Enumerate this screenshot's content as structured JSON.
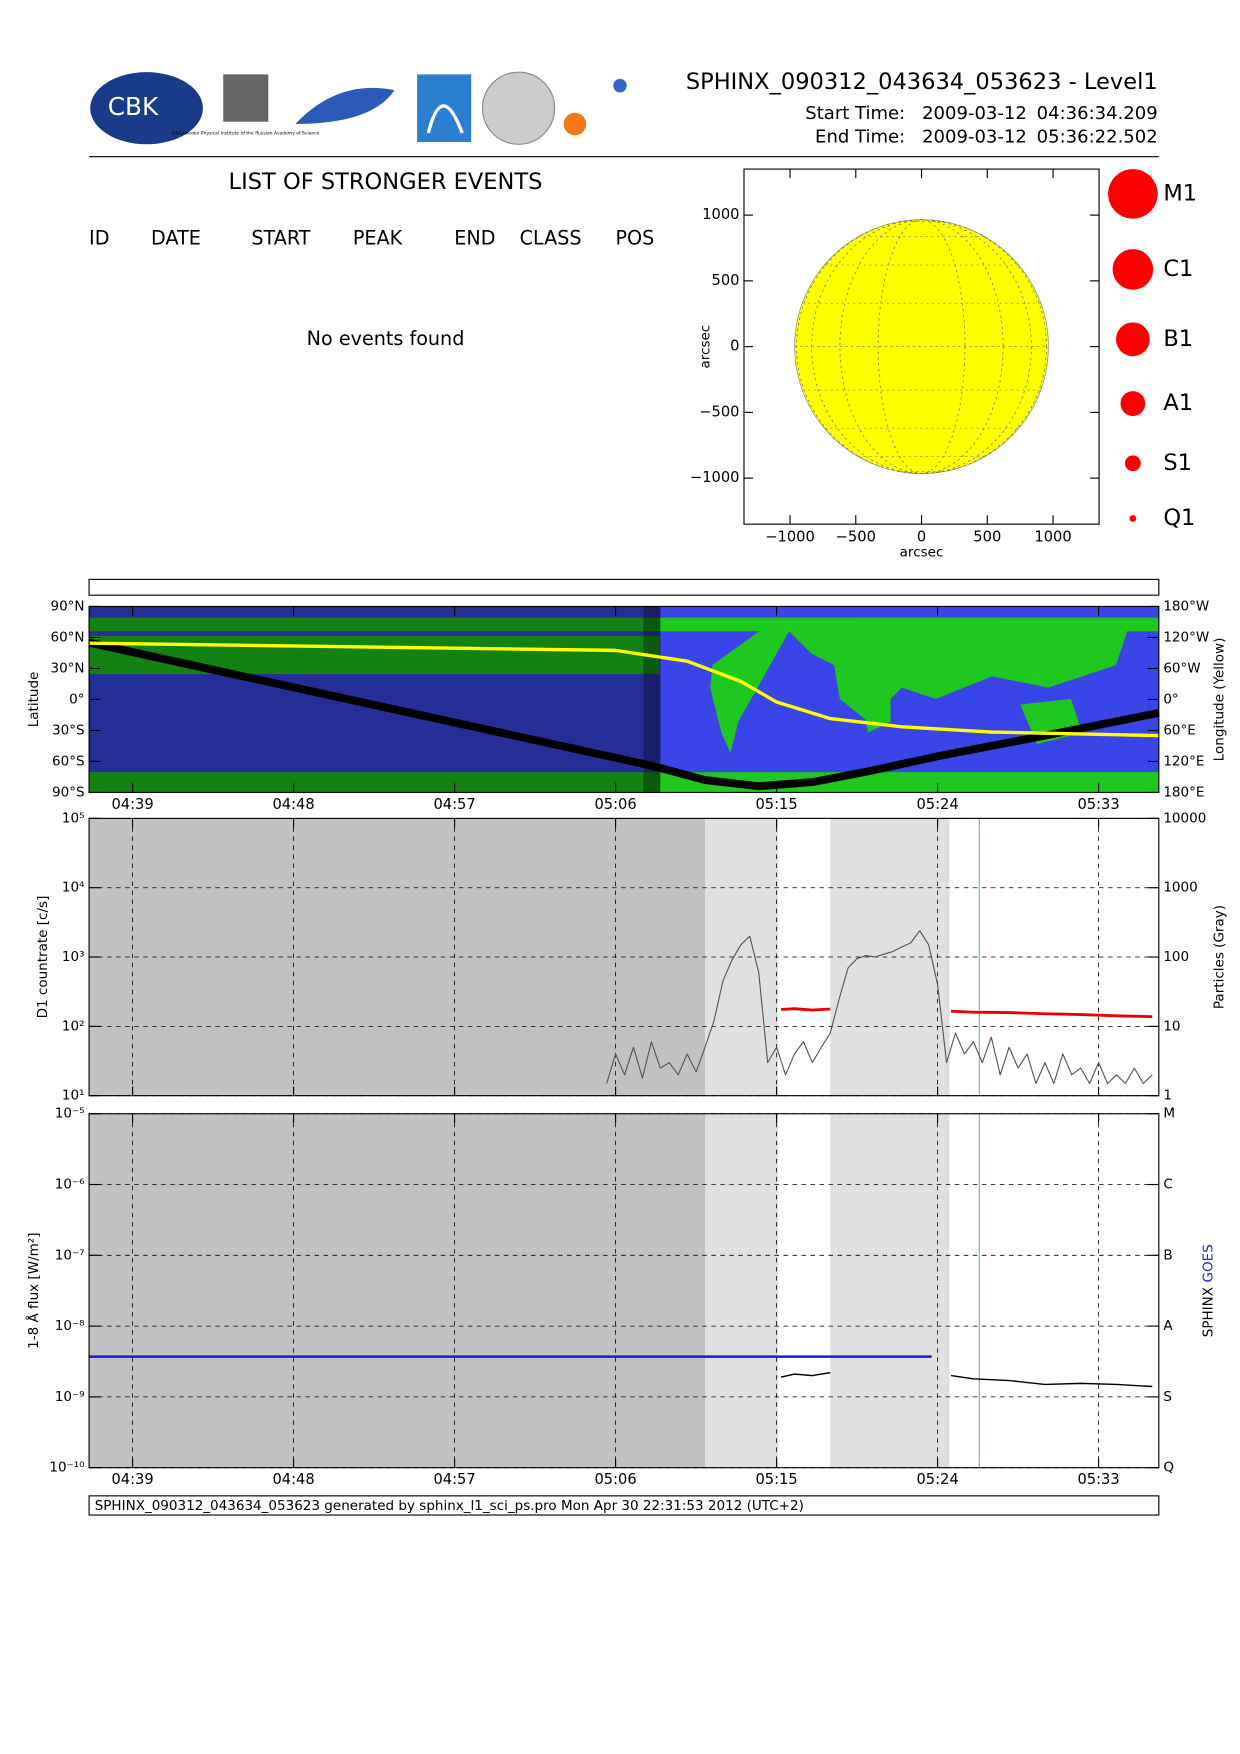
{
  "header": {
    "title": "SPHINX_090312_043634_053623 - Level1",
    "start_label": "Start Time:",
    "start_date": "2009-03-12",
    "start_time": "04:36:34.209",
    "end_label": "End Time:",
    "end_date": "2009-03-12",
    "end_time": "05:36:22.502",
    "logo_text": "CBK",
    "lebedev_caption": "P.N.Lebedev Physical Institute of the Russian Academy of Science"
  },
  "events": {
    "title": "LIST OF STRONGER EVENTS",
    "columns": [
      "ID",
      "DATE",
      "START",
      "PEAK",
      "END",
      "CLASS",
      "POS"
    ],
    "message": "No events found"
  },
  "chart_data": [
    {
      "type": "disk",
      "xlabel": "arcsec",
      "ylabel": "arcsec",
      "xlim": [
        -1350,
        1350
      ],
      "ylim": [
        -1350,
        1350
      ],
      "xticks": [
        {
          "value": -1000,
          "label": "−1000"
        },
        {
          "value": -500,
          "label": "−500"
        },
        0,
        500,
        1000
      ],
      "yticks": [
        {
          "value": -1000,
          "label": "−1000"
        },
        {
          "value": -500,
          "label": "−500"
        },
        0,
        500,
        1000
      ],
      "sun_radius": 965,
      "color": "#ffff00",
      "legend": [
        "M1",
        "C1",
        "B1",
        "A1",
        "S1",
        "Q1"
      ],
      "legend_color": "#ff0000"
    },
    {
      "type": "map",
      "ylabel": "Latitude",
      "y2label": "Longitude (Yellow)",
      "xlim": [
        "04:36:34",
        "05:36:22"
      ],
      "xticks": [
        "04:39",
        "04:48",
        "04:57",
        "05:06",
        "05:15",
        "05:24",
        "05:33"
      ],
      "ylim": [
        -90,
        90
      ],
      "yticks": [
        {
          "value": 90,
          "label": "90°N"
        },
        {
          "value": 60,
          "label": "60°N"
        },
        {
          "value": 30,
          "label": "30°N"
        },
        {
          "value": 0,
          "label": "0°"
        },
        {
          "value": -30,
          "label": "30°S"
        },
        {
          "value": -60,
          "label": "60°S"
        },
        {
          "value": -90,
          "label": "90°S"
        }
      ],
      "y2lim": [
        180,
        -180
      ],
      "y2ticks": [
        {
          "value": -180,
          "label": "180°W"
        },
        {
          "value": -120,
          "label": "120°W"
        },
        {
          "value": -60,
          "label": "60°W"
        },
        {
          "value": 0,
          "label": "0°"
        },
        {
          "value": 60,
          "label": "60°E"
        },
        {
          "value": 120,
          "label": "120°E"
        },
        {
          "value": 180,
          "label": "180°E"
        }
      ],
      "shade": [
        "04:36:34",
        "05:08:30"
      ],
      "series": [
        {
          "color": "#000000",
          "axis": "y",
          "x": [
            "04:36:34",
            "05:08:00",
            "05:11:00",
            "05:14:00",
            "05:17:00",
            "05:20:00",
            "05:24:00",
            "05:30:00",
            "05:36:22"
          ],
          "values": [
            55,
            -64,
            -78,
            -84,
            -80,
            -70,
            -55,
            -35,
            -13
          ]
        },
        {
          "color": "#ffff00",
          "axis": "y2",
          "x": [
            "04:36:34",
            "05:06:00",
            "05:10:00",
            "05:13:00",
            "05:15:00",
            "05:18:00",
            "05:22:00",
            "05:27:00",
            "05:36:22"
          ],
          "values": [
            -109,
            -95,
            -74,
            -35,
            5,
            37,
            53,
            63,
            70
          ]
        }
      ]
    },
    {
      "type": "log_line",
      "ylabel": "D1 countrate [c/s]",
      "y2label": "Particles (Gray)",
      "xlim": [
        "04:36:34",
        "05:36:22"
      ],
      "xticks": [
        "04:39",
        "04:48",
        "04:57",
        "05:06",
        "05:15",
        "05:24",
        "05:33"
      ],
      "ylim": [
        10,
        100000
      ],
      "yticks": [
        {
          "value": 10,
          "label": "10¹"
        },
        {
          "value": 100,
          "label": "10²"
        },
        {
          "value": 1000,
          "label": "10³"
        },
        {
          "value": 10000,
          "label": "10⁴"
        },
        {
          "value": 100000,
          "label": "10⁵"
        }
      ],
      "y2lim": [
        1,
        10000
      ],
      "y2ticks": [
        1,
        10,
        100,
        1000,
        10000
      ],
      "regions": [
        {
          "start": "04:36:34",
          "end": "05:11:00",
          "color": "#c2c2c2"
        },
        {
          "start": "05:11:00",
          "end": "05:15:05",
          "color": "#e0e0e0"
        },
        {
          "start": "05:18:00",
          "end": "05:24:40",
          "color": "#e0e0e0"
        }
      ],
      "marker_time": "05:26:20",
      "marker_color": "#66cc66",
      "series": [
        {
          "color": "#555555",
          "axis": "y2",
          "x": [
            "05:05:30",
            "05:06:00",
            "05:06:30",
            "05:07:00",
            "05:07:30",
            "05:08:00",
            "05:08:30",
            "05:09:00",
            "05:09:30",
            "05:10:00",
            "05:10:30",
            "05:11:00",
            "05:11:30",
            "05:12:00",
            "05:12:30",
            "05:13:00",
            "05:13:30",
            "05:14:00",
            "05:14:30",
            "05:15:00",
            "05:15:30",
            "05:16:00",
            "05:16:30",
            "05:17:00",
            "05:17:30",
            "05:18:00",
            "05:18:30",
            "05:19:00",
            "05:19:30",
            "05:20:00",
            "05:20:30",
            "05:21:00",
            "05:21:30",
            "05:22:00",
            "05:22:30",
            "05:23:00",
            "05:23:30",
            "05:24:00",
            "05:24:30",
            "05:25:00",
            "05:25:30",
            "05:26:00",
            "05:26:30",
            "05:27:00",
            "05:27:30",
            "05:28:00",
            "05:28:30",
            "05:29:00",
            "05:29:30",
            "05:30:00",
            "05:30:30",
            "05:31:00",
            "05:31:30",
            "05:32:00",
            "05:32:30",
            "05:33:00",
            "05:33:30",
            "05:34:00",
            "05:34:30",
            "05:35:00",
            "05:35:30",
            "05:36:00"
          ],
          "values": [
            1.5,
            4,
            2,
            5,
            1.8,
            6,
            2.5,
            3,
            2,
            4,
            2.2,
            5,
            12,
            45,
            90,
            150,
            200,
            60,
            3,
            5,
            2,
            4,
            6,
            3,
            5,
            8,
            25,
            70,
            95,
            105,
            100,
            110,
            120,
            140,
            160,
            240,
            150,
            40,
            3,
            8,
            4,
            6,
            3,
            7,
            2,
            5,
            2.5,
            4,
            1.5,
            3,
            1.5,
            4,
            2,
            2.5,
            1.5,
            3,
            1.5,
            2,
            1.5,
            2.5,
            1.5,
            2
          ]
        },
        {
          "color": "#ee0000",
          "axis": "y",
          "x": [
            "05:15:15",
            "05:16:00",
            "05:17:00",
            "05:18:00",
            "05:21:00",
            "05:24:45",
            "05:26:00",
            "05:28:00",
            "05:30:00",
            "05:32:00",
            "05:34:00",
            "05:36:00"
          ],
          "values": [
            175,
            180,
            172,
            178,
            null,
            165,
            160,
            158,
            152,
            148,
            142,
            138
          ]
        }
      ]
    },
    {
      "type": "log_line",
      "ylabel": "1-8 Å flux [W/m²]",
      "y2labels": [
        {
          "text": "SPHINX",
          "color": "#000000"
        },
        {
          "text": "GOES",
          "color": "#2222dd"
        }
      ],
      "xlim": [
        "04:36:34",
        "05:36:22"
      ],
      "xticks": [
        "04:39",
        "04:48",
        "04:57",
        "05:06",
        "05:15",
        "05:24",
        "05:33"
      ],
      "ylim": [
        1e-10,
        1e-05
      ],
      "yticks": [
        {
          "value": 1e-10,
          "label": "10⁻¹⁰"
        },
        {
          "value": 1e-09,
          "label": "10⁻⁹"
        },
        {
          "value": 1e-08,
          "label": "10⁻⁸"
        },
        {
          "value": 1e-07,
          "label": "10⁻⁷"
        },
        {
          "value": 1e-06,
          "label": "10⁻⁶"
        },
        {
          "value": 1e-05,
          "label": "10⁻⁵"
        }
      ],
      "y2lim": [
        1e-10,
        1e-05
      ],
      "y2ticks": [
        {
          "value": 1e-10,
          "label": "Q"
        },
        {
          "value": 1e-09,
          "label": "S"
        },
        {
          "value": 1e-08,
          "label": "A"
        },
        {
          "value": 1e-07,
          "label": "B"
        },
        {
          "value": 1e-06,
          "label": "C"
        },
        {
          "value": 1e-05,
          "label": "M"
        }
      ],
      "series": [
        {
          "color": "#1a1add",
          "axis": "y",
          "x": [
            "04:36:34",
            "05:23:40"
          ],
          "values": [
            3.7e-09,
            3.7e-09
          ]
        },
        {
          "color": "#000000",
          "axis": "y",
          "x": [
            "05:15:15",
            "05:16:00",
            "05:17:00",
            "05:18:00",
            "05:21:00",
            "05:24:45",
            "05:26:00",
            "05:28:00",
            "05:30:00",
            "05:32:00",
            "05:34:00",
            "05:36:00"
          ],
          "values": [
            1.9e-09,
            2.1e-09,
            2e-09,
            2.2e-09,
            null,
            2e-09,
            1.8e-09,
            1.7e-09,
            1.5e-09,
            1.55e-09,
            1.5e-09,
            1.4e-09
          ]
        }
      ]
    }
  ],
  "footer": "SPHINX_090312_043634_053623 generated by sphinx_l1_sci_ps.pro Mon Apr 30 22:31:53 2012 (UTC+2)"
}
